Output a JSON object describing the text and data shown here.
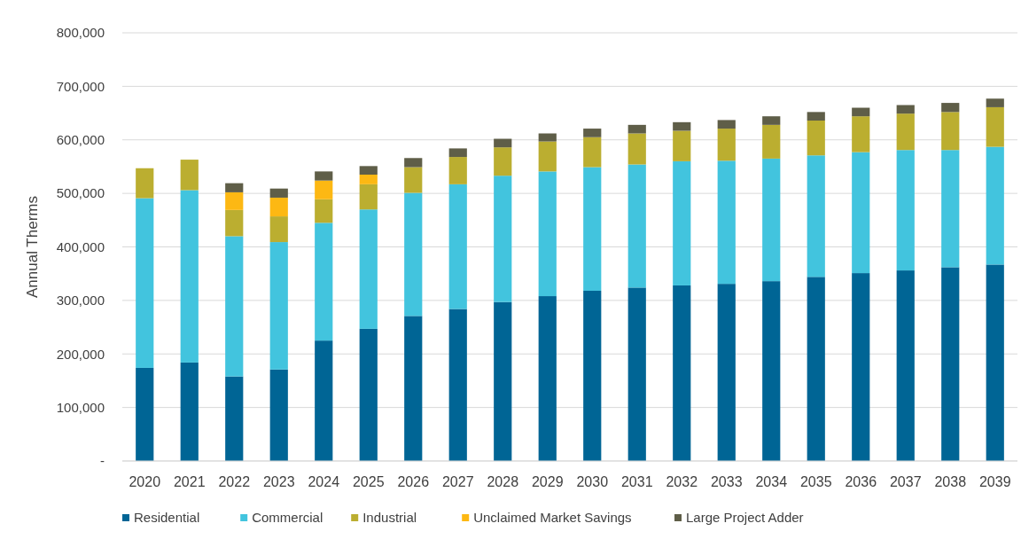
{
  "chart_data": {
    "type": "bar",
    "stacked": true,
    "ylabel": "Annual Therms",
    "categories": [
      "2020",
      "2021",
      "2022",
      "2023",
      "2024",
      "2025",
      "2026",
      "2027",
      "2028",
      "2029",
      "2030",
      "2031",
      "2032",
      "2033",
      "2034",
      "2035",
      "2036",
      "2037",
      "2038",
      "2039"
    ],
    "series": [
      {
        "name": "Residential",
        "color": "#006595",
        "values": [
          174000,
          184000,
          158000,
          171000,
          225000,
          247000,
          271000,
          284000,
          297000,
          308000,
          318000,
          324000,
          328000,
          331000,
          336000,
          344000,
          351000,
          356000,
          362000,
          367000
        ]
      },
      {
        "name": "Commercial",
        "color": "#42c4de",
        "values": [
          317000,
          322000,
          262000,
          238000,
          220000,
          223000,
          230000,
          233000,
          236000,
          233000,
          231000,
          230000,
          232000,
          230000,
          229000,
          227000,
          226000,
          225000,
          219000,
          220000
        ]
      },
      {
        "name": "Industrial",
        "color": "#bbae30",
        "values": [
          56000,
          57000,
          49000,
          48000,
          44000,
          47000,
          48000,
          51000,
          53000,
          56000,
          56000,
          58000,
          57000,
          60000,
          63000,
          65000,
          67000,
          68000,
          71000,
          74000
        ]
      },
      {
        "name": "Unclaimed Market Savings",
        "color": "#fdb813",
        "values": [
          0,
          0,
          33000,
          35000,
          35000,
          18000,
          0,
          0,
          0,
          0,
          0,
          0,
          0,
          0,
          0,
          0,
          0,
          0,
          0,
          0
        ]
      },
      {
        "name": "Large Project Adder",
        "color": "#5f5e48",
        "values": [
          0,
          0,
          17000,
          17000,
          17000,
          16000,
          17000,
          16000,
          16000,
          15000,
          16000,
          16000,
          16000,
          16000,
          16000,
          16000,
          16000,
          16000,
          17000,
          16000
        ]
      }
    ],
    "ylim": [
      0,
      800000
    ],
    "yticks": [
      {
        "value": 0,
        "label": "-"
      },
      {
        "value": 100000,
        "label": "100,000"
      },
      {
        "value": 200000,
        "label": "200,000"
      },
      {
        "value": 300000,
        "label": "300,000"
      },
      {
        "value": 400000,
        "label": "400,000"
      },
      {
        "value": 500000,
        "label": "500,000"
      },
      {
        "value": 600000,
        "label": "600,000"
      },
      {
        "value": 700000,
        "label": "700,000"
      },
      {
        "value": 800000,
        "label": "800,000"
      }
    ],
    "grid": "y",
    "legend": "bottom"
  }
}
